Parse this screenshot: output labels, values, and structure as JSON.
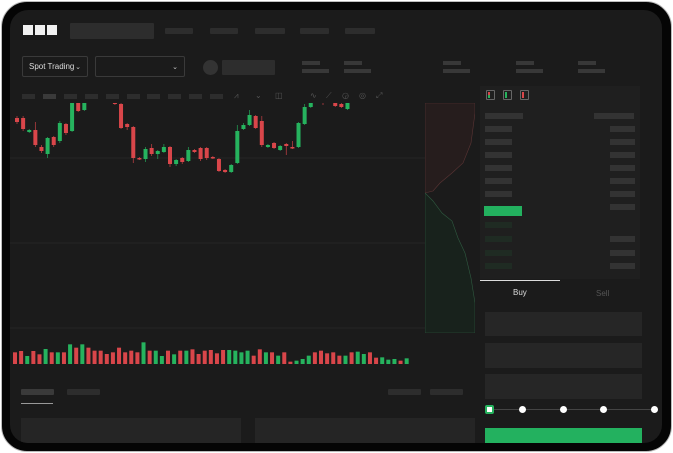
{
  "header": {
    "logo": "OKX"
  },
  "controls": {
    "market_type": "Spot Trading"
  },
  "trade": {
    "tabs": [
      {
        "label": "Buy",
        "active": true
      },
      {
        "label": "Sell",
        "active": false
      }
    ],
    "leverage_slider_value": 0
  },
  "colors": {
    "up": "#26b35e",
    "down": "#d9464a",
    "background": "#1b1b1b",
    "accent": "#23b15f"
  },
  "icons": {
    "logo": "okx-logo",
    "dropdown": "chevron-down-icon",
    "orderbook_views": [
      "orderbook-both-icon",
      "orderbook-bids-icon",
      "orderbook-asks-icon"
    ]
  },
  "chart": {
    "type": "candlestick",
    "candles": [
      {
        "o": 97,
        "c": 93,
        "h": 99,
        "l": 91
      },
      {
        "o": 97,
        "c": 86,
        "h": 99,
        "l": 84
      },
      {
        "o": 83,
        "c": 85,
        "h": 86,
        "l": 82
      },
      {
        "o": 85,
        "c": 70,
        "h": 93,
        "l": 68
      },
      {
        "o": 68,
        "c": 64,
        "h": 70,
        "l": 62
      },
      {
        "o": 61,
        "c": 77,
        "h": 78,
        "l": 57
      },
      {
        "o": 78,
        "c": 70,
        "h": 79,
        "l": 68
      },
      {
        "o": 74,
        "c": 92,
        "h": 94,
        "l": 72
      },
      {
        "o": 91,
        "c": 82,
        "h": 92,
        "l": 80
      },
      {
        "o": 84,
        "c": 115,
        "h": 124,
        "l": 83
      },
      {
        "o": 114,
        "c": 104,
        "h": 117,
        "l": 103
      },
      {
        "o": 105,
        "c": 138,
        "h": 152,
        "l": 104
      },
      {
        "o": 140,
        "c": 135,
        "h": 141,
        "l": 134
      },
      {
        "o": 137,
        "c": 132,
        "h": 139,
        "l": 130
      },
      {
        "o": 137,
        "c": 125,
        "h": 143,
        "l": 123
      },
      {
        "o": 133,
        "c": 130,
        "h": 134,
        "l": 129
      },
      {
        "o": 134,
        "c": 111,
        "h": 137,
        "l": 110
      },
      {
        "o": 111,
        "c": 87,
        "h": 112,
        "l": 86
      },
      {
        "o": 91,
        "c": 88,
        "h": 92,
        "l": 85
      },
      {
        "o": 88,
        "c": 57,
        "h": 89,
        "l": 52
      },
      {
        "o": 57,
        "c": 56,
        "h": 58,
        "l": 55
      },
      {
        "o": 56,
        "c": 66,
        "h": 68,
        "l": 53
      },
      {
        "o": 67,
        "c": 61,
        "h": 71,
        "l": 59
      },
      {
        "o": 61,
        "c": 64,
        "h": 65,
        "l": 56
      },
      {
        "o": 63,
        "c": 68,
        "h": 71,
        "l": 62
      },
      {
        "o": 68,
        "c": 51,
        "h": 69,
        "l": 48
      },
      {
        "o": 51,
        "c": 55,
        "h": 56,
        "l": 49
      },
      {
        "o": 57,
        "c": 53,
        "h": 58,
        "l": 51
      },
      {
        "o": 54,
        "c": 65,
        "h": 68,
        "l": 53
      },
      {
        "o": 65,
        "c": 63,
        "h": 66,
        "l": 62
      },
      {
        "o": 67,
        "c": 56,
        "h": 68,
        "l": 54
      },
      {
        "o": 67,
        "c": 57,
        "h": 68,
        "l": 55
      },
      {
        "o": 58,
        "c": 57,
        "h": 59,
        "l": 56
      },
      {
        "o": 56,
        "c": 44,
        "h": 57,
        "l": 43
      },
      {
        "o": 45,
        "c": 43,
        "h": 46,
        "l": 42
      },
      {
        "o": 43,
        "c": 50,
        "h": 51,
        "l": 42
      },
      {
        "o": 52,
        "c": 84,
        "h": 90,
        "l": 51
      },
      {
        "o": 86,
        "c": 90,
        "h": 92,
        "l": 85
      },
      {
        "o": 90,
        "c": 100,
        "h": 105,
        "l": 89
      },
      {
        "o": 99,
        "c": 87,
        "h": 100,
        "l": 86
      },
      {
        "o": 94,
        "c": 70,
        "h": 99,
        "l": 68
      },
      {
        "o": 68,
        "c": 70,
        "h": 71,
        "l": 67
      },
      {
        "o": 72,
        "c": 67,
        "h": 73,
        "l": 66
      },
      {
        "o": 65,
        "c": 69,
        "h": 70,
        "l": 64
      },
      {
        "o": 71,
        "c": 69,
        "h": 72,
        "l": 60
      },
      {
        "o": 68,
        "c": 67,
        "h": 74,
        "l": 66
      },
      {
        "o": 68,
        "c": 92,
        "h": 93,
        "l": 67
      },
      {
        "o": 91,
        "c": 108,
        "h": 111,
        "l": 90
      },
      {
        "o": 108,
        "c": 155,
        "h": 171,
        "l": 107
      },
      {
        "o": 157,
        "c": 143,
        "h": 159,
        "l": 141
      },
      {
        "o": 143,
        "c": 115,
        "h": 144,
        "l": 110
      },
      {
        "o": 118,
        "c": 116,
        "h": 119,
        "l": 115
      },
      {
        "o": 115,
        "c": 109,
        "h": 116,
        "l": 108
      },
      {
        "o": 111,
        "c": 108,
        "h": 114,
        "l": 107
      },
      {
        "o": 106,
        "c": 121,
        "h": 123,
        "l": 105
      },
      {
        "o": 122,
        "c": 120,
        "h": 126,
        "l": 119
      },
      {
        "o": 118,
        "c": 123,
        "h": 128,
        "l": 117
      },
      {
        "o": 123,
        "c": 152,
        "h": 153,
        "l": 122
      },
      {
        "o": 154,
        "c": 141,
        "h": 155,
        "l": 140
      },
      {
        "o": 141,
        "c": 136,
        "h": 142,
        "l": 135
      },
      {
        "o": 133,
        "c": 143,
        "h": 150,
        "l": 132
      },
      {
        "o": 143,
        "c": 154,
        "h": 163,
        "l": 142
      },
      {
        "o": 154,
        "c": 163,
        "h": 168,
        "l": 153
      },
      {
        "o": 154,
        "c": 147,
        "h": 155,
        "l": 143
      },
      {
        "o": 145,
        "c": 151,
        "h": 157,
        "l": 144
      }
    ],
    "volumes": [
      35,
      39,
      24,
      39,
      29,
      45,
      35,
      35,
      35,
      59,
      49,
      59,
      49,
      40,
      40,
      30,
      35,
      49,
      35,
      40,
      35,
      65,
      40,
      40,
      24,
      40,
      29,
      40,
      40,
      44,
      30,
      40,
      42,
      32,
      42,
      42,
      40,
      35,
      40,
      25,
      44,
      35,
      35,
      25,
      35,
      7,
      10,
      15,
      25,
      35,
      40,
      32,
      35,
      25,
      25,
      35,
      37,
      30,
      35,
      19,
      20,
      13,
      15,
      10,
      17
    ]
  }
}
